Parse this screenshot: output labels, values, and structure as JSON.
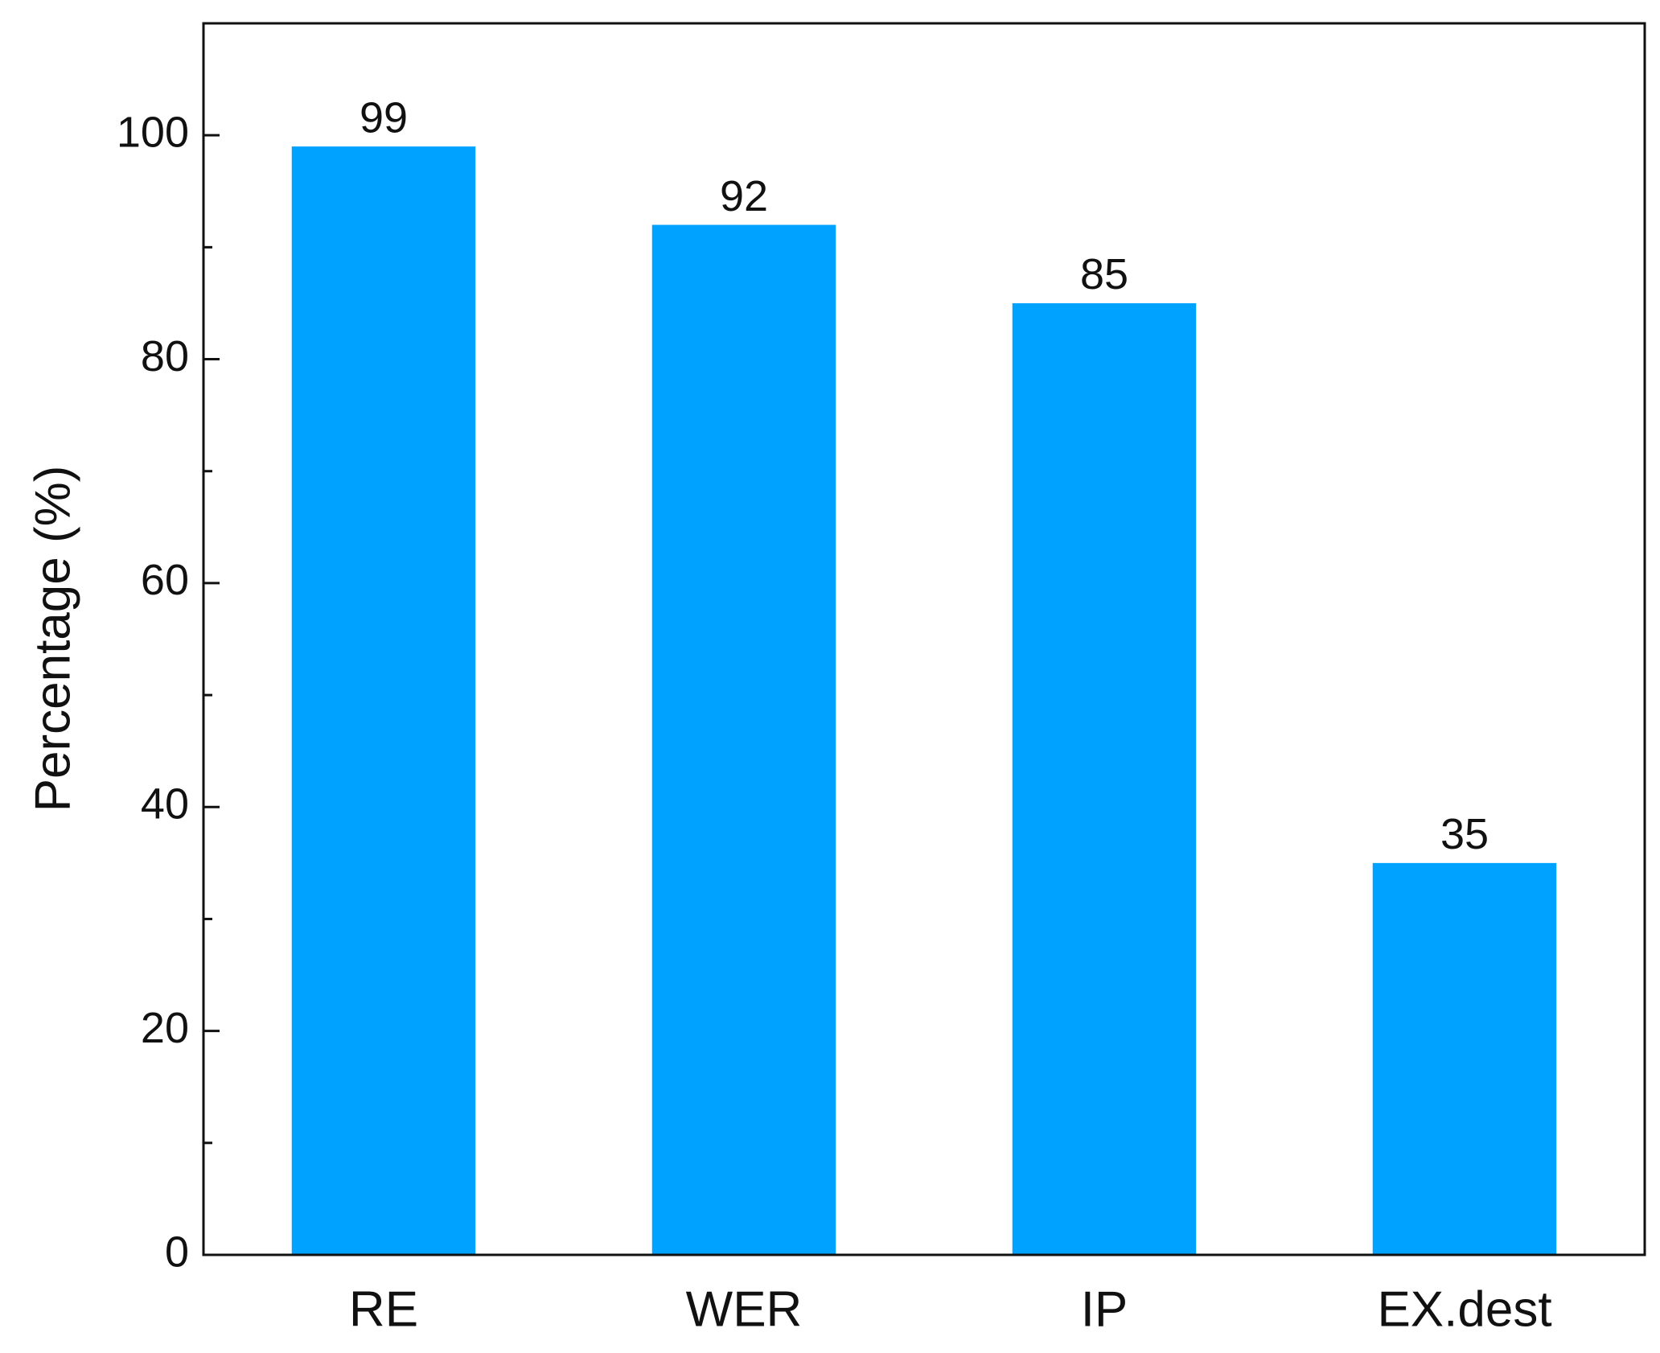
{
  "chart_data": {
    "type": "bar",
    "y_label": "Percentage (%)",
    "categories": [
      "RE",
      "WER",
      "IP",
      "EX.dest"
    ],
    "values": [
      99,
      92,
      85,
      35
    ],
    "color": "#00a2ff",
    "ylim": [
      0,
      110
    ],
    "yticks": [
      0,
      20,
      40,
      60,
      80,
      100
    ]
  }
}
